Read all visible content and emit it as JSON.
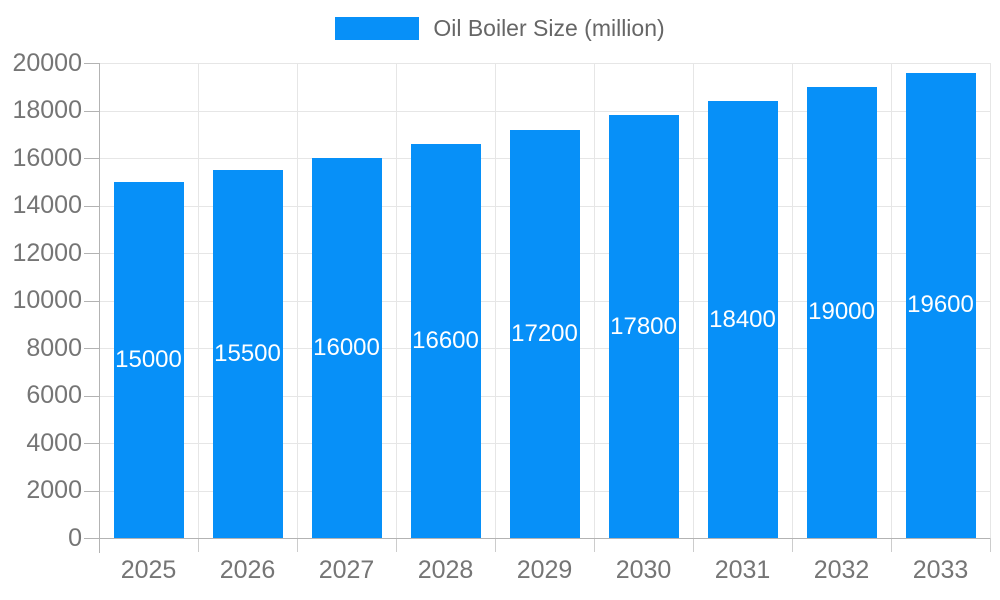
{
  "legend": {
    "label": "Oil Boiler Size (million)"
  },
  "chart_data": {
    "type": "bar",
    "title": "Oil Boiler Size (million)",
    "series_name": "Oil Boiler Size (million)",
    "categories": [
      "2025",
      "2026",
      "2027",
      "2028",
      "2029",
      "2030",
      "2031",
      "2032",
      "2033"
    ],
    "values": [
      15000,
      15500,
      16000,
      16600,
      17200,
      17800,
      18400,
      19000,
      19600
    ],
    "xlabel": "",
    "ylabel": "",
    "ylim": [
      0,
      20000
    ],
    "ytick_interval": 2000,
    "yticks": [
      0,
      2000,
      4000,
      6000,
      8000,
      10000,
      12000,
      14000,
      16000,
      18000,
      20000
    ],
    "grid": true,
    "legend_position": "top",
    "value_label_position": "inside-center",
    "colors": {
      "bar": "#0790f8",
      "value_label": "#ffffff",
      "axis_label": "#757575",
      "legend_text": "#666666",
      "grid_line": "#e6e6e6",
      "axis_line": "#b3b3b3",
      "minor_tick": "#cccccc",
      "background": "#ffffff"
    }
  }
}
